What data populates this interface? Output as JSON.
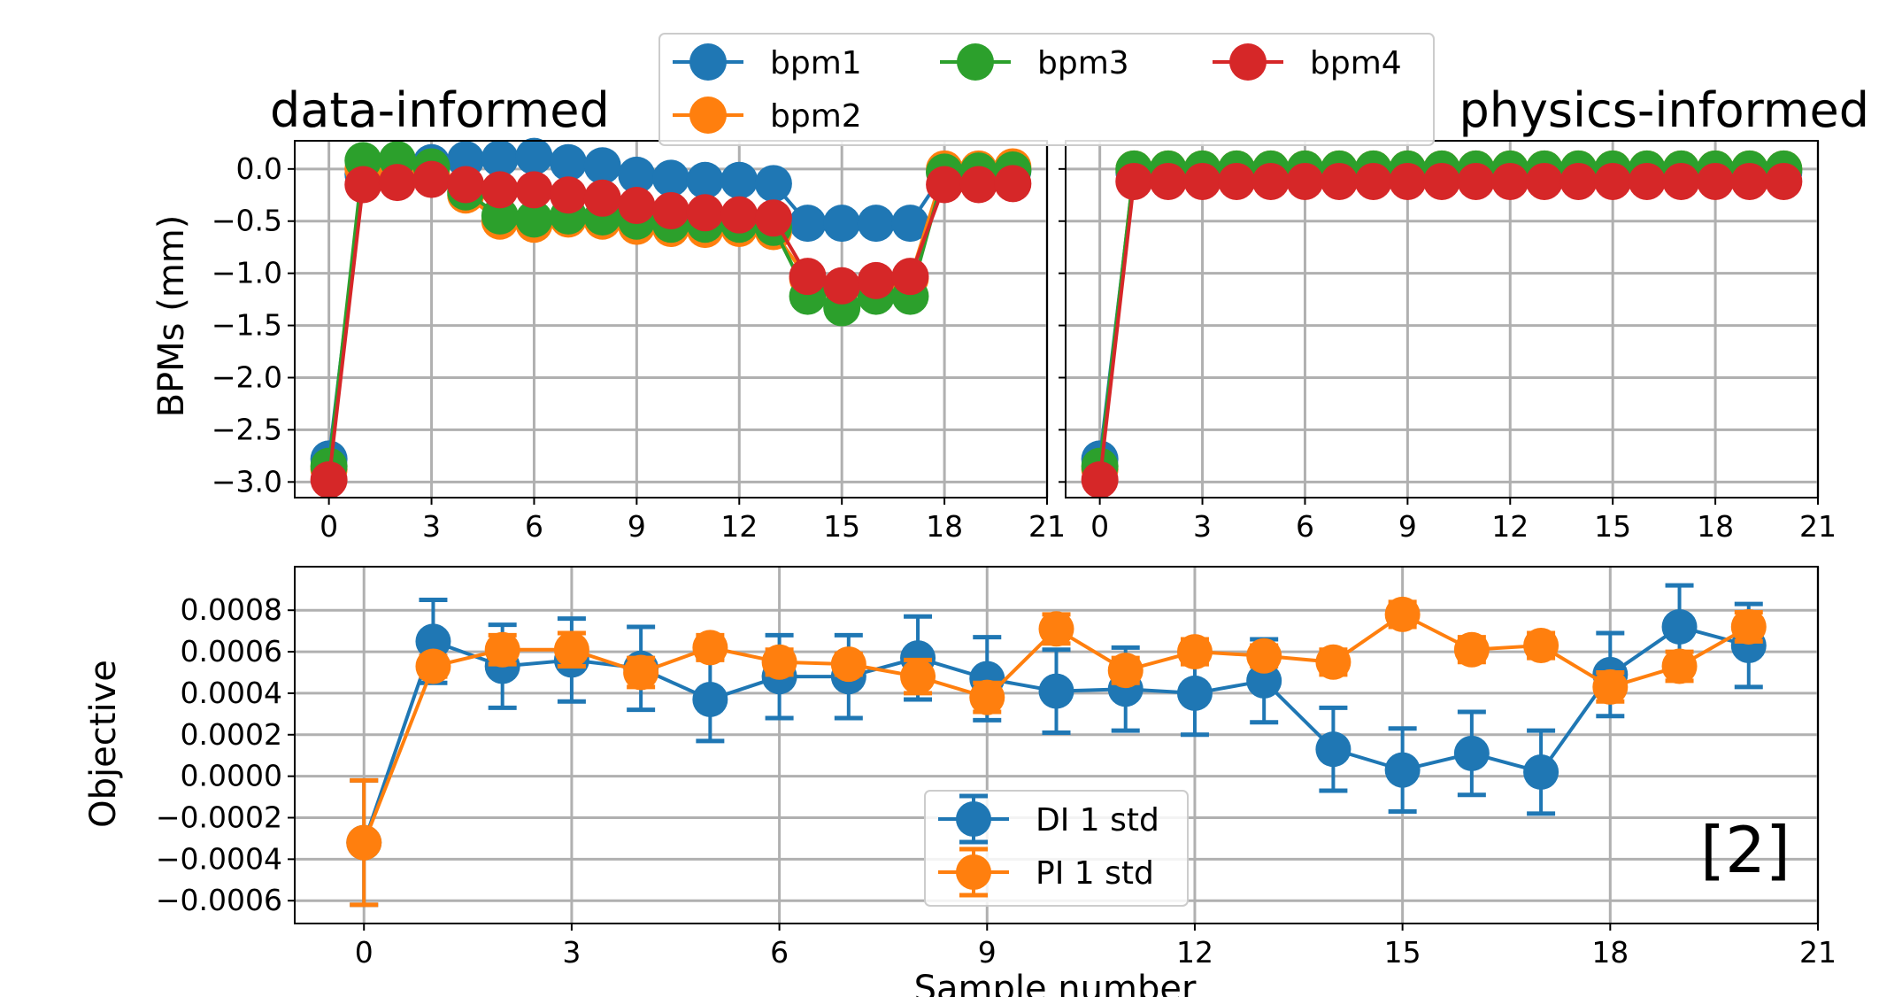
{
  "chart_data": [
    {
      "type": "line",
      "title": "data-informed",
      "ylabel": "BPMs (mm)",
      "xlabel": "",
      "xlim": [
        -1,
        21
      ],
      "ylim": [
        -3.15,
        0.27
      ],
      "xticks": [
        0,
        3,
        6,
        9,
        12,
        15,
        18,
        21
      ],
      "yticks": [
        0.0,
        -0.5,
        -1.0,
        -1.5,
        -2.0,
        -2.5,
        -3.0
      ],
      "ytick_labels": [
        "0.0",
        "−0.5",
        "−1.0",
        "−1.5",
        "−2.0",
        "−2.5",
        "−3.0"
      ],
      "grid": true,
      "x": [
        0,
        1,
        2,
        3,
        4,
        5,
        6,
        7,
        8,
        9,
        10,
        11,
        12,
        13,
        14,
        15,
        16,
        17,
        18,
        19,
        20
      ],
      "series": [
        {
          "name": "bpm1",
          "color": "#1f77b4",
          "values": [
            -2.78,
            -0.05,
            -0.05,
            0.06,
            0.09,
            0.1,
            0.12,
            0.06,
            0.03,
            -0.06,
            -0.09,
            -0.11,
            -0.11,
            -0.14,
            -0.52,
            -0.52,
            -0.52,
            -0.52,
            -0.03,
            -0.02,
            -0.02
          ]
        },
        {
          "name": "bpm2",
          "color": "#ff7f0e",
          "values": [
            -2.88,
            0.0,
            0.0,
            -0.05,
            -0.25,
            -0.5,
            -0.53,
            -0.48,
            -0.5,
            -0.55,
            -0.57,
            -0.58,
            -0.57,
            -0.6,
            -1.05,
            -1.13,
            -1.1,
            -1.05,
            0.0,
            0.0,
            0.02
          ]
        },
        {
          "name": "bpm3",
          "color": "#2ca02c",
          "values": [
            -2.85,
            0.08,
            0.09,
            0.02,
            -0.22,
            -0.45,
            -0.48,
            -0.45,
            -0.46,
            -0.5,
            -0.53,
            -0.53,
            -0.53,
            -0.56,
            -1.22,
            -1.33,
            -1.22,
            -1.22,
            -0.03,
            -0.02,
            -0.01
          ]
        },
        {
          "name": "bpm4",
          "color": "#d62728",
          "values": [
            -2.98,
            -0.15,
            -0.13,
            -0.1,
            -0.15,
            -0.2,
            -0.2,
            -0.25,
            -0.28,
            -0.35,
            -0.4,
            -0.42,
            -0.44,
            -0.47,
            -1.03,
            -1.12,
            -1.07,
            -1.03,
            -0.15,
            -0.15,
            -0.14
          ]
        }
      ],
      "legend": {
        "position": "top-center",
        "columns": 3
      }
    },
    {
      "type": "line",
      "title": "physics-informed",
      "xlabel": "",
      "ylabel": "",
      "xlim": [
        -1,
        21
      ],
      "ylim": [
        -3.15,
        0.27
      ],
      "xticks": [
        0,
        3,
        6,
        9,
        12,
        15,
        18,
        21
      ],
      "grid": true,
      "x": [
        0,
        1,
        2,
        3,
        4,
        5,
        6,
        7,
        8,
        9,
        10,
        11,
        12,
        13,
        14,
        15,
        16,
        17,
        18,
        19,
        20
      ],
      "series": [
        {
          "name": "bpm1",
          "color": "#1f77b4",
          "values": [
            -2.78,
            -0.03,
            -0.03,
            -0.03,
            -0.03,
            -0.03,
            -0.03,
            -0.03,
            -0.03,
            -0.03,
            -0.03,
            -0.03,
            -0.03,
            -0.03,
            -0.03,
            -0.03,
            -0.03,
            -0.03,
            -0.03,
            -0.03,
            -0.03
          ]
        },
        {
          "name": "bpm2",
          "color": "#ff7f0e",
          "values": [
            -2.88,
            0.0,
            0.0,
            0.0,
            0.0,
            0.0,
            0.0,
            0.0,
            0.0,
            0.0,
            0.0,
            0.0,
            0.0,
            0.0,
            0.0,
            0.0,
            0.0,
            0.0,
            0.0,
            0.0,
            0.0
          ]
        },
        {
          "name": "bpm3",
          "color": "#2ca02c",
          "values": [
            -2.85,
            0.0,
            0.0,
            0.0,
            0.0,
            0.0,
            0.0,
            0.0,
            0.0,
            0.0,
            0.0,
            0.0,
            0.0,
            0.0,
            0.0,
            0.0,
            0.0,
            0.0,
            0.0,
            0.0,
            0.0
          ]
        },
        {
          "name": "bpm4",
          "color": "#d62728",
          "values": [
            -2.98,
            -0.12,
            -0.12,
            -0.12,
            -0.12,
            -0.12,
            -0.12,
            -0.12,
            -0.12,
            -0.12,
            -0.12,
            -0.12,
            -0.12,
            -0.12,
            -0.12,
            -0.12,
            -0.12,
            -0.12,
            -0.12,
            -0.12,
            -0.12
          ]
        }
      ]
    },
    {
      "type": "line",
      "title": "",
      "xlabel": "Sample number",
      "ylabel": "Objective",
      "xlim": [
        -1,
        21
      ],
      "ylim": [
        -0.00071,
        0.00101
      ],
      "xticks": [
        0,
        3,
        6,
        9,
        12,
        15,
        18,
        21
      ],
      "yticks": [
        0.0008,
        0.0006,
        0.0004,
        0.0002,
        0.0,
        -0.0002,
        -0.0004,
        -0.0006
      ],
      "ytick_labels": [
        "0.0008",
        "0.0006",
        "0.0004",
        "0.0002",
        "0.0000",
        "−0.0002",
        "−0.0004",
        "−0.0006"
      ],
      "grid": true,
      "x": [
        0,
        1,
        2,
        3,
        4,
        5,
        6,
        7,
        8,
        9,
        10,
        11,
        12,
        13,
        14,
        15,
        16,
        17,
        18,
        19,
        20
      ],
      "series": [
        {
          "name": "DI 1 std",
          "color": "#1f77b4",
          "values": [
            -0.00032,
            0.00065,
            0.00053,
            0.00056,
            0.00052,
            0.00037,
            0.00048,
            0.00048,
            0.00057,
            0.00047,
            0.00041,
            0.00042,
            0.0004,
            0.00046,
            0.00013,
            3e-05,
            0.00011,
            2e-05,
            0.00049,
            0.00072,
            0.00063
          ],
          "std": [
            0.0003,
            0.0002,
            0.0002,
            0.0002,
            0.0002,
            0.0002,
            0.0002,
            0.0002,
            0.0002,
            0.0002,
            0.0002,
            0.0002,
            0.0002,
            0.0002,
            0.0002,
            0.0002,
            0.0002,
            0.0002,
            0.0002,
            0.0002,
            0.0002
          ]
        },
        {
          "name": "PI 1 std",
          "color": "#ff7f0e",
          "values": [
            -0.00032,
            0.00053,
            0.00061,
            0.00061,
            0.0005,
            0.00062,
            0.00055,
            0.00054,
            0.00048,
            0.00038,
            0.00071,
            0.00051,
            0.0006,
            0.00058,
            0.00055,
            0.00078,
            0.00061,
            0.00063,
            0.00043,
            0.00053,
            0.00072
          ],
          "std": [
            0.0003,
            5e-05,
            7e-05,
            8e-05,
            7e-05,
            6e-05,
            6e-05,
            5e-05,
            8e-05,
            7e-05,
            7e-05,
            6e-05,
            6e-05,
            5e-05,
            6e-05,
            6e-05,
            6e-05,
            6e-05,
            7e-05,
            7e-05,
            7e-05
          ]
        }
      ],
      "legend": {
        "position": "bottom-center"
      },
      "annotation": "[2]"
    }
  ]
}
